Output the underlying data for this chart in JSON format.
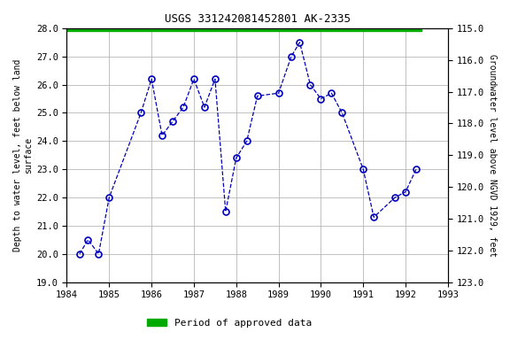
{
  "title": "USGS 331242081452801 AK-2335",
  "x_data": [
    1984.3,
    1984.5,
    1984.75,
    1985.0,
    1985.75,
    1986.0,
    1986.25,
    1986.5,
    1986.75,
    1987.0,
    1987.25,
    1987.5,
    1987.75,
    1988.0,
    1988.25,
    1988.5,
    1989.0,
    1989.3,
    1989.5,
    1989.75,
    1990.0,
    1990.25,
    1990.5,
    1991.0,
    1991.25,
    1991.75,
    1992.0,
    1992.25
  ],
  "y_data": [
    20.0,
    20.5,
    20.0,
    22.0,
    25.0,
    26.2,
    24.2,
    24.7,
    25.2,
    26.2,
    25.2,
    26.2,
    21.5,
    23.4,
    24.0,
    25.6,
    25.7,
    27.0,
    27.5,
    26.0,
    25.5,
    25.7,
    25.0,
    23.0,
    21.3,
    22.0,
    22.2,
    23.0
  ],
  "ylim_left_top": 19.0,
  "ylim_left_bottom": 28.0,
  "ylim_right_top": 123.0,
  "ylim_right_bottom": 115.0,
  "xlim": [
    1984.0,
    1993.0
  ],
  "ylabel_left": "Depth to water level, feet below land\nsurface",
  "ylabel_right": "Groundwater level above NGVD 1929, feet",
  "left_yticks": [
    19.0,
    20.0,
    21.0,
    22.0,
    23.0,
    24.0,
    25.0,
    26.0,
    27.0,
    28.0
  ],
  "right_yticks": [
    123.0,
    122.0,
    121.0,
    120.0,
    119.0,
    118.0,
    117.0,
    116.0,
    115.0
  ],
  "xticks": [
    1984,
    1985,
    1986,
    1987,
    1988,
    1989,
    1990,
    1991,
    1992,
    1993
  ],
  "line_color": "#0000bb",
  "marker_color": "#0000bb",
  "bg_color": "#ffffff",
  "plot_bg_color": "#ffffff",
  "grid_color": "#aaaaaa",
  "legend_label": "Period of approved data",
  "legend_color": "#00aa00",
  "green_bar_xstart": 1984.0,
  "green_bar_xend": 1992.4
}
